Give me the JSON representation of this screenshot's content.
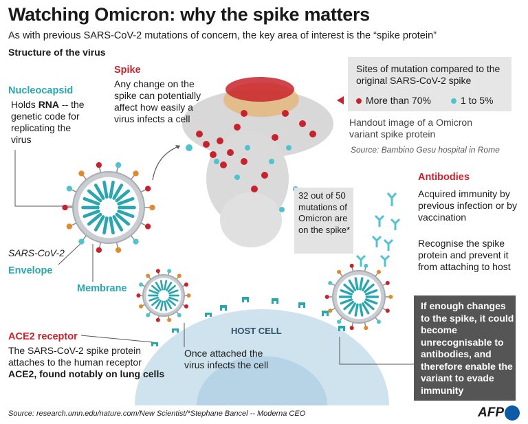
{
  "title": "Watching Omicron: why the spike matters",
  "subtitle": "As with previous SARS-CoV-2 mutations of concern, the key area of interest is the “spike protein”",
  "section_label": "Structure of the virus",
  "nucleocapsid": {
    "heading": "Nucleocapsid",
    "text_before": "Holds ",
    "text_bold": "RNA",
    "text_after": " -- the genetic code for replicating the virus"
  },
  "spike": {
    "heading": "Spike",
    "text": "Any change on the spike can potentially affect how easily a virus infects a cell"
  },
  "legend": {
    "title": "Sites of mutation compared to the original SARS-CoV-2 spike",
    "items": [
      {
        "label": "More than 70%",
        "color": "#c8232c"
      },
      {
        "label": "1 to 5%",
        "color": "#4fc3cf"
      }
    ]
  },
  "image_caption": "Handout image of a Omicron variant spike protein",
  "image_source": "Source: Bambino Gesu hospital in Rome",
  "callout": "32 out of 50 mutations of Omicron are on the spike*",
  "virus_label": "SARS-CoV-2",
  "envelope_label": "Envelope",
  "membrane_label": "Membrane",
  "antibodies": {
    "heading": "Antibodies",
    "text1": "Acquired immunity by previous infection or by vaccination",
    "text2": "Recognise the spike protein and prevent it from attaching to host"
  },
  "host_cell_label": "HOST CELL",
  "ace2": {
    "heading": "ACE2 receptor",
    "text": "The SARS-CoV-2 spike protein attaches to the human receptor",
    "text_bold": "ACE2, found notably on lung cells"
  },
  "attached_text": "Once attached the virus infects the cell",
  "dark_box_text": "If enough changes to the spike, it could become unrecognisable to antibodies, and therefore enable the variant to evade immunity",
  "source": "Source: research.umn.edu/nature.com/New Scientist/*Stephane Bancel -- Moderna CEO",
  "brand": "AFP",
  "colors": {
    "red": "#c8232c",
    "teal": "#2aa6b0",
    "host_cell": "#cfe3ef",
    "dark_box": "#555555"
  }
}
